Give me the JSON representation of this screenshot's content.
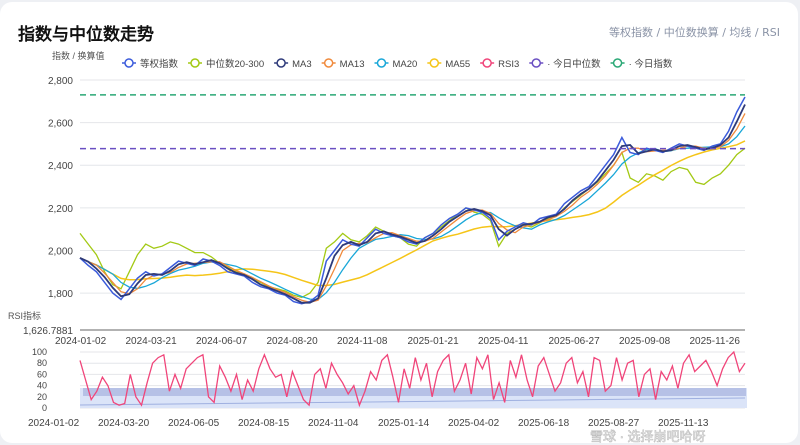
{
  "header": {
    "title": "指数与中位数走势",
    "subtitle": "等权指数 / 中位数换算 / 均线 / RSI"
  },
  "watermark": "雪球 · 选择崩吧哈呀",
  "chart_data": {
    "type": "line",
    "ylabel": "指数 / 换算值",
    "ylim": [
      1626.7881,
      2800
    ],
    "yticks": [
      1800,
      2000,
      2200,
      2400,
      2600,
      2800
    ],
    "ymin_label": "1,626.7881",
    "x_range": [
      "2024-01-02",
      "2025-12-31"
    ],
    "xticks": [
      "2024-01-02",
      "2024-03-21",
      "2024-06-07",
      "2024-08-20",
      "2024-11-08",
      "2025-01-21",
      "2025-04-11",
      "2025-06-27",
      "2025-09-08",
      "2025-11-26"
    ],
    "legend": [
      {
        "name": "等权指数",
        "color": "#3b5bdb"
      },
      {
        "name": "中位数20-300",
        "color": "#a3c914"
      },
      {
        "name": "MA3",
        "color": "#2e3a7a"
      },
      {
        "name": "MA13",
        "color": "#f08a3c"
      },
      {
        "name": "MA20",
        "color": "#19a7d8"
      },
      {
        "name": "MA55",
        "color": "#f5c518"
      },
      {
        "name": "RSI3",
        "color": "#f0457a"
      },
      {
        "name": "今日中位数",
        "color": "#6a4fc2"
      },
      {
        "name": "今日指数",
        "color": "#2aa876"
      }
    ],
    "series_index": [
      1965,
      1930,
      1900,
      1850,
      1800,
      1770,
      1820,
      1870,
      1900,
      1880,
      1890,
      1920,
      1950,
      1940,
      1930,
      1960,
      1950,
      1930,
      1900,
      1890,
      1880,
      1850,
      1830,
      1820,
      1800,
      1790,
      1760,
      1750,
      1760,
      1790,
      1950,
      2000,
      2050,
      2030,
      2020,
      2060,
      2100,
      2080,
      2070,
      2060,
      2040,
      2030,
      2060,
      2080,
      2120,
      2150,
      2170,
      2200,
      2190,
      2180,
      2150,
      2050,
      2090,
      2110,
      2130,
      2120,
      2150,
      2160,
      2170,
      2220,
      2250,
      2280,
      2300,
      2350,
      2400,
      2450,
      2530,
      2460,
      2450,
      2480,
      2470,
      2460,
      2480,
      2500,
      2490,
      2480,
      2470,
      2490,
      2500,
      2560,
      2650,
      2720
    ],
    "series_median": [
      2080,
      2030,
      1980,
      1900,
      1840,
      1820,
      1900,
      1980,
      2030,
      2010,
      2020,
      2040,
      2030,
      2010,
      1990,
      1990,
      1970,
      1940,
      1920,
      1900,
      1890,
      1870,
      1850,
      1830,
      1820,
      1810,
      1790,
      1780,
      1800,
      1850,
      2010,
      2040,
      2080,
      2050,
      2040,
      2070,
      2110,
      2090,
      2070,
      2060,
      2030,
      2020,
      2060,
      2080,
      2110,
      2140,
      2170,
      2200,
      2180,
      2170,
      2140,
      2020,
      2080,
      2100,
      2120,
      2110,
      2130,
      2150,
      2160,
      2200,
      2230,
      2260,
      2290,
      2320,
      2360,
      2400,
      2460,
      2340,
      2320,
      2360,
      2350,
      2330,
      2370,
      2390,
      2380,
      2320,
      2310,
      2340,
      2360,
      2400,
      2450,
      2480
    ],
    "ma55_note": "",
    "ref_lines": [
      {
        "name": "今日中位数",
        "value": 2478
      },
      {
        "name": "今日指数",
        "value": 2730
      }
    ],
    "rsi": {
      "label": "RSI指标",
      "ylim": [
        0,
        100
      ],
      "yticks": [
        0,
        20,
        40,
        60,
        80,
        100
      ],
      "values": [
        85,
        50,
        15,
        30,
        55,
        40,
        10,
        5,
        8,
        60,
        20,
        5,
        45,
        80,
        90,
        95,
        30,
        60,
        35,
        70,
        80,
        90,
        95,
        20,
        10,
        75,
        55,
        30,
        60,
        15,
        50,
        30,
        70,
        95,
        70,
        55,
        60,
        20,
        65,
        40,
        15,
        5,
        60,
        70,
        35,
        80,
        60,
        45,
        25,
        40,
        5,
        30,
        65,
        50,
        85,
        95,
        55,
        10,
        70,
        35,
        90,
        50,
        80,
        20,
        65,
        85,
        95,
        30,
        50,
        80,
        25,
        90,
        70,
        95,
        15,
        45,
        10,
        85,
        55,
        95,
        50,
        20,
        75,
        90,
        60,
        30,
        45,
        80,
        90,
        45,
        65,
        20,
        90,
        85,
        30,
        40,
        90,
        50,
        80,
        85,
        20,
        60,
        70,
        15,
        65,
        50,
        75,
        35,
        80,
        95,
        65,
        75,
        85,
        65,
        40,
        70,
        90,
        100,
        65,
        80
      ]
    },
    "slider_ticks": [
      "2024-01-02",
      "2024-03-20",
      "2024-06-05",
      "2024-08-15",
      "2024-11-04",
      "2025-01-14",
      "2025-04-02",
      "2025-06-18",
      "2025-08-27",
      "2025-11-13"
    ]
  }
}
